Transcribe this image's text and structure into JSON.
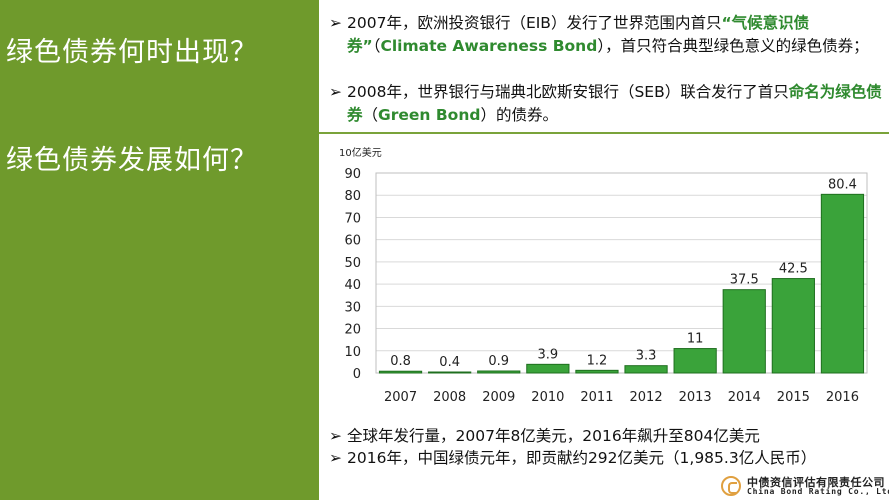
{
  "left": {
    "q1": "绿色债券何时出现？",
    "q2": "绿色债券发展如何？"
  },
  "bullets": {
    "arrow": "➢",
    "b1": {
      "t1": "2007年，欧洲投资银行（EIB）发行了世界范围内首只",
      "hl1": "“气候意识债券”",
      "t2": "（",
      "hl2": "Climate Awareness Bond",
      "t3": "），首只符合典型绿色意义的绿色债券；"
    },
    "b2": {
      "t1": "2008年，世界银行与瑞典北欧斯安银行（SEB）联合发行了首只",
      "hl1": "命名为绿色债券",
      "t2": "（",
      "hl2": "Green Bond",
      "t3": "）的债券。"
    },
    "b3": "全球年发行量，2007年8亿美元，2016年飙升至804亿美元",
    "b4": "2016年，中国绿债元年，即贡献约292亿美元（1,985.3亿人民币）"
  },
  "chart_data": {
    "type": "bar",
    "ylabel": "10亿美元",
    "categories": [
      "2007",
      "2008",
      "2009",
      "2010",
      "2011",
      "2012",
      "2013",
      "2014",
      "2015",
      "2016"
    ],
    "values": [
      0.8,
      0.4,
      0.9,
      3.9,
      1.2,
      3.3,
      11,
      37.5,
      42.5,
      80.4
    ],
    "value_labels": [
      "0.8",
      "0.4",
      "0.9",
      "3.9",
      "1.2",
      "3.3",
      "11",
      "37.5",
      "42.5",
      "80.4"
    ],
    "ylim": [
      0,
      90
    ],
    "yticks": [
      0,
      10,
      20,
      30,
      40,
      50,
      60,
      70,
      80,
      90
    ],
    "grid": true,
    "bar_color": "#3aa33a",
    "bar_edge": "#1f6f1f"
  },
  "logo": {
    "cn": "中债资信评估有限责任公司",
    "en": "China Bond Rating Co., Ltd."
  },
  "colors": {
    "left_panel": "#6f9a2c",
    "highlight": "#2f8a2f"
  }
}
